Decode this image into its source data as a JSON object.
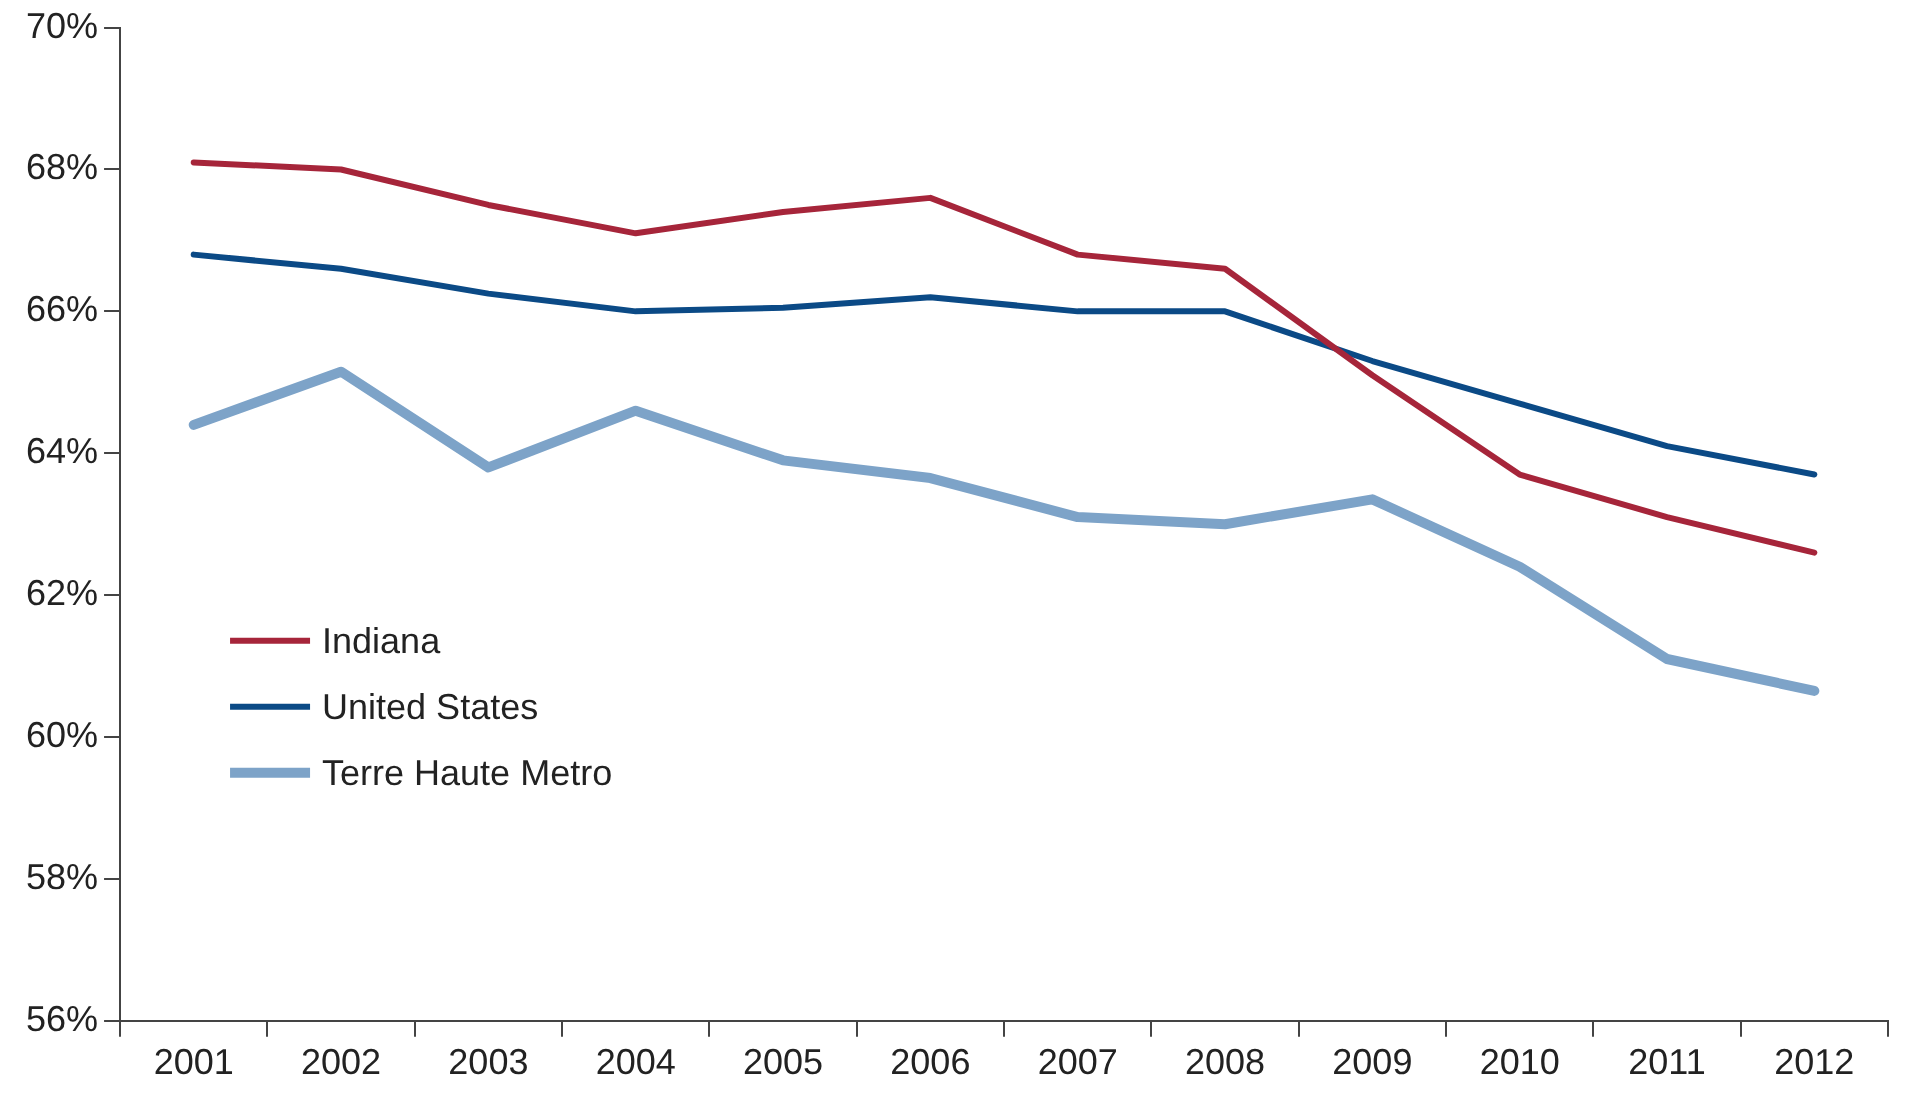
{
  "chart_data": {
    "type": "line",
    "categories": [
      "2001",
      "2002",
      "2003",
      "2004",
      "2005",
      "2006",
      "2007",
      "2008",
      "2009",
      "2010",
      "2011",
      "2012"
    ],
    "series": [
      {
        "name": "Indiana",
        "color": "#a6253a",
        "values": [
          68.1,
          68.0,
          67.5,
          67.1,
          67.4,
          67.6,
          66.8,
          66.6,
          65.1,
          63.7,
          63.1,
          62.6
        ]
      },
      {
        "name": "United States",
        "color": "#0b4a86",
        "values": [
          66.8,
          66.6,
          66.25,
          66.0,
          66.05,
          66.2,
          66.0,
          66.0,
          65.3,
          64.7,
          64.1,
          63.7
        ]
      },
      {
        "name": "Terre Haute Metro",
        "color": "#7da3c8",
        "values": [
          64.4,
          65.15,
          63.8,
          64.6,
          63.9,
          63.65,
          63.1,
          63.0,
          63.35,
          62.4,
          61.1,
          60.65
        ]
      }
    ],
    "ylim": [
      56,
      70
    ],
    "yticks": [
      {
        "value": 56,
        "label": "56%"
      },
      {
        "value": 58,
        "label": "58%"
      },
      {
        "value": 60,
        "label": "60%"
      },
      {
        "value": 62,
        "label": "62%"
      },
      {
        "value": 64,
        "label": "64%"
      },
      {
        "value": 66,
        "label": "66%"
      },
      {
        "value": 68,
        "label": "68%"
      },
      {
        "value": 70,
        "label": "70%"
      }
    ],
    "grid": false,
    "legend": "bottom left",
    "marker": "none",
    "line_style": "solid"
  }
}
